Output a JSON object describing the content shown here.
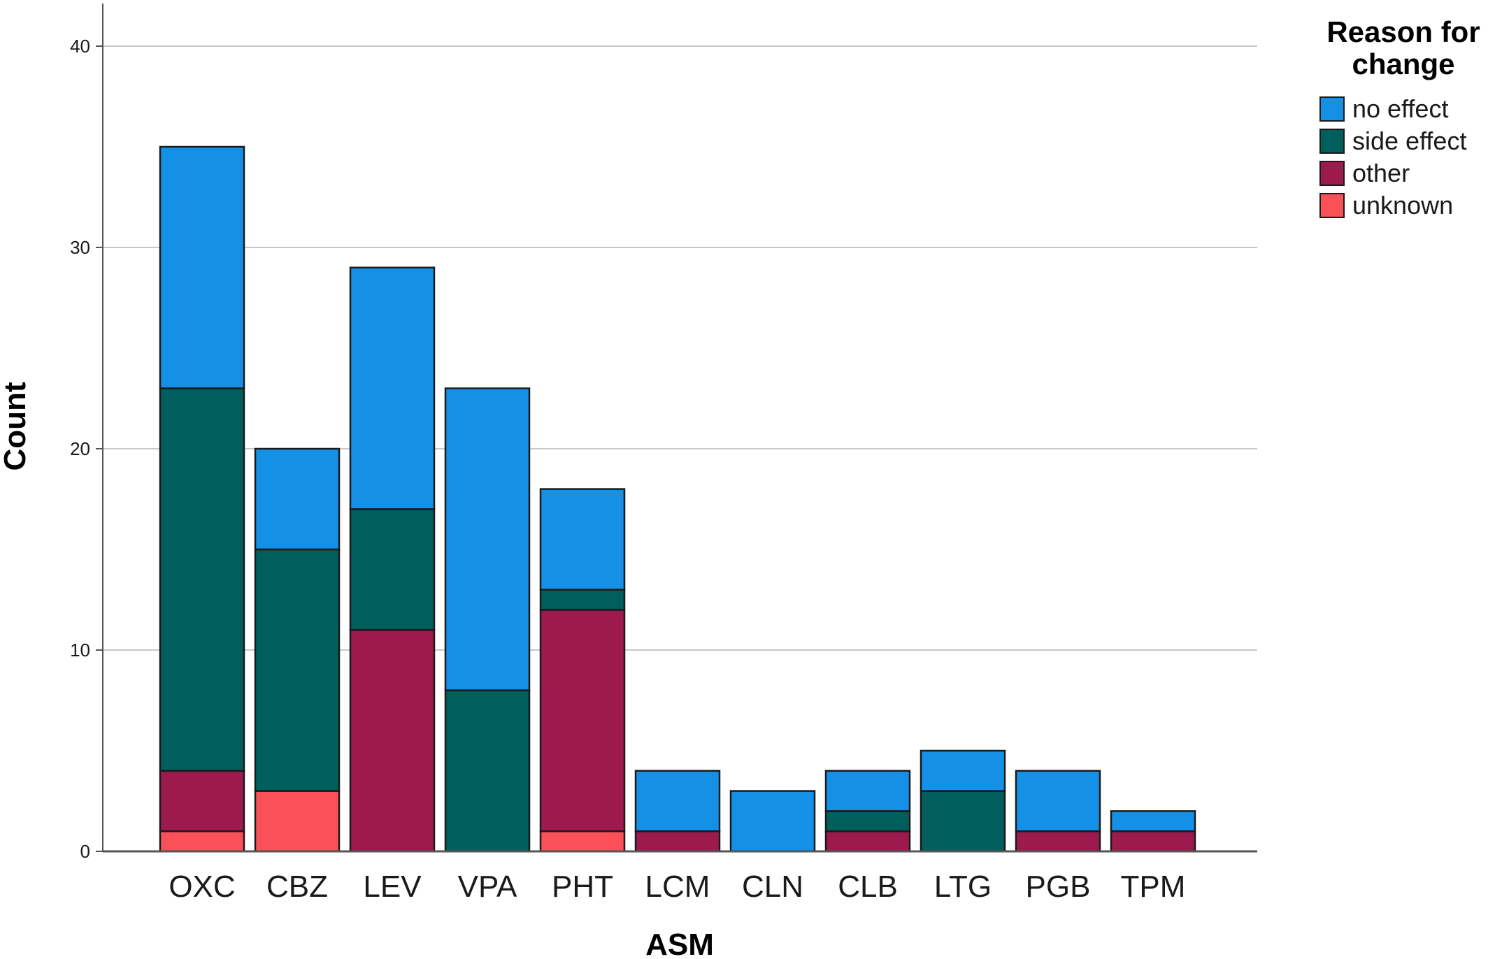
{
  "chart_data": {
    "type": "bar",
    "stacked": true,
    "title": "",
    "xlabel": "ASM",
    "ylabel": "Count",
    "ylim": [
      0,
      40
    ],
    "yticks": [
      "0",
      "10",
      "20",
      "30",
      "40"
    ],
    "grid": true,
    "legend": {
      "title_line1": "Reason for",
      "title_line2": "change",
      "placement": "top-right"
    },
    "categories": [
      "OXC",
      "CBZ",
      "LEV",
      "VPA",
      "PHT",
      "LCM",
      "CLN",
      "CLB",
      "LTG",
      "PGB",
      "TPM"
    ],
    "series": [
      {
        "name": "unknown",
        "color": "#fa5057",
        "values": [
          1,
          3,
          0,
          0,
          1,
          0,
          0,
          0,
          0,
          0,
          0
        ]
      },
      {
        "name": "other",
        "color": "#9c1a4e",
        "values": [
          3,
          0,
          11,
          0,
          11,
          1,
          0,
          1,
          0,
          1,
          1
        ]
      },
      {
        "name": "side effect",
        "color": "#005e5c",
        "values": [
          19,
          12,
          6,
          8,
          1,
          0,
          0,
          1,
          3,
          0,
          0
        ]
      },
      {
        "name": "no effect",
        "color": "#1490e6",
        "values": [
          12,
          5,
          12,
          15,
          5,
          3,
          3,
          2,
          2,
          3,
          1
        ]
      }
    ],
    "legend_order": [
      "no effect",
      "side effect",
      "other",
      "unknown"
    ]
  }
}
